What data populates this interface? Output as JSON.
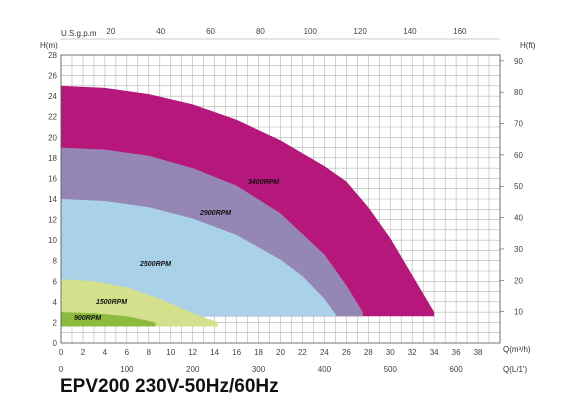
{
  "model_title": "EPV200 230V-50Hz/60Hz",
  "chart_data": {
    "type": "area",
    "title": "EPV200 230V-50Hz/60Hz",
    "xlabel": "Q(m³/h)",
    "xlabel_secondary": "Q(L/1')",
    "xlabel_top": "U.S.g.p.m",
    "ylabel": "H(m)",
    "ylabel_right": "H(ft)",
    "xlim": [
      0,
      40
    ],
    "ylim": [
      0,
      28
    ],
    "grid": true,
    "x_ticks": [
      0,
      2,
      4,
      6,
      8,
      10,
      12,
      14,
      16,
      18,
      20,
      22,
      24,
      26,
      28,
      30,
      32,
      34,
      36,
      38
    ],
    "x_ticks_lmin": [
      0,
      100,
      200,
      300,
      400,
      500,
      600
    ],
    "x_ticks_gpm": [
      20,
      40,
      60,
      80,
      100,
      120,
      140,
      160
    ],
    "y_ticks": [
      0,
      2,
      4,
      6,
      8,
      10,
      12,
      14,
      16,
      18,
      20,
      22,
      24,
      26,
      28
    ],
    "y_ticks_ft": [
      10,
      20,
      30,
      40,
      50,
      60,
      70,
      80,
      90
    ],
    "series": [
      {
        "name": "3400RPM",
        "color": "#b5177a",
        "x": [
          0,
          4,
          8,
          12,
          16,
          20,
          24,
          26,
          28,
          30,
          32,
          34
        ],
        "y": [
          25,
          24.8,
          24.2,
          23.2,
          21.7,
          19.7,
          17.2,
          15.7,
          13.2,
          10.2,
          6.6,
          3
        ]
      },
      {
        "name": "2900RPM",
        "color": "#9487b5",
        "x": [
          0,
          4,
          8,
          12,
          16,
          20,
          24,
          26,
          27.5
        ],
        "y": [
          19,
          18.8,
          18.2,
          17,
          15.3,
          12.6,
          8.6,
          5.6,
          3
        ]
      },
      {
        "name": "2500RPM",
        "color": "#a9d2e8",
        "x": [
          0,
          4,
          8,
          12,
          16,
          20,
          22,
          24,
          25.2
        ],
        "y": [
          14,
          13.8,
          13.2,
          12.1,
          10.5,
          8.1,
          6.5,
          4.3,
          2.5
        ]
      },
      {
        "name": "1500RPM",
        "color": "#d5e08d",
        "x": [
          0,
          3,
          6,
          9,
          12,
          14.3
        ],
        "y": [
          6.2,
          6,
          5.4,
          4.3,
          2.9,
          2
        ]
      },
      {
        "name": "900RPM",
        "color": "#8cbc3f",
        "x": [
          0,
          3,
          6,
          8,
          8.6
        ],
        "y": [
          3,
          2.9,
          2.6,
          2.15,
          2
        ]
      }
    ]
  }
}
